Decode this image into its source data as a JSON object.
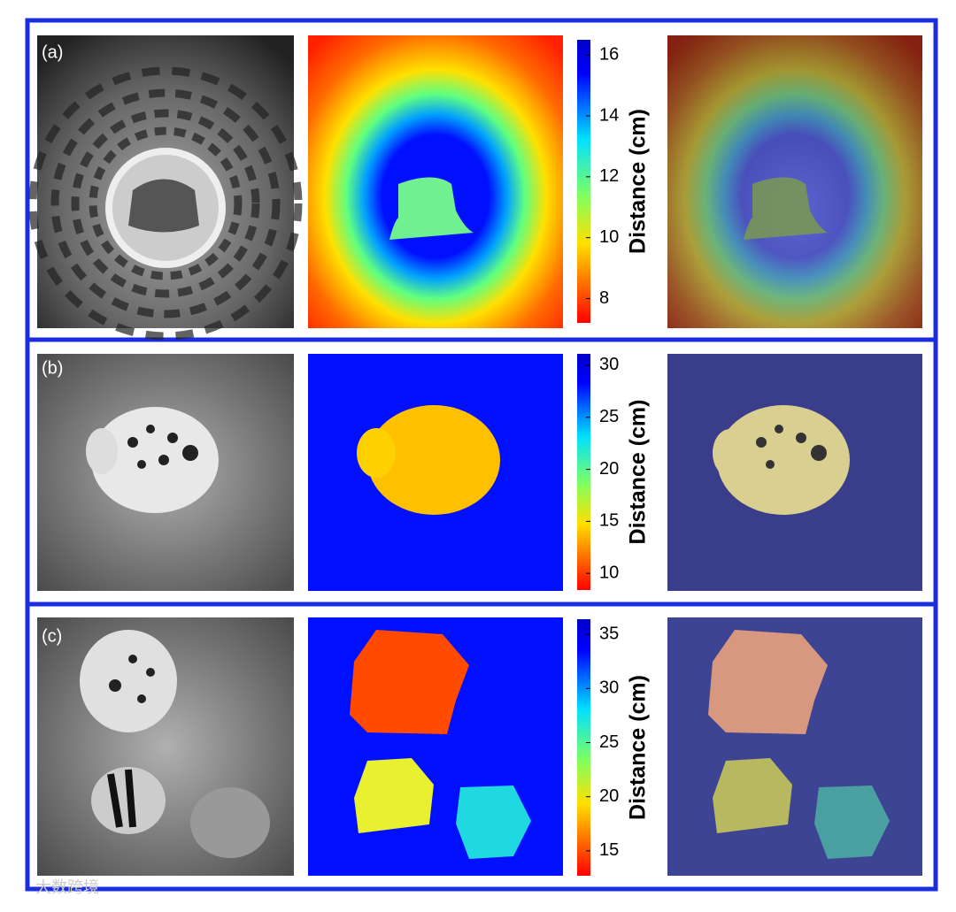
{
  "panels": [
    {
      "label": "(a)",
      "colorbar": {
        "label": "Distance (cm)",
        "lim": [
          7.2,
          16.5
        ],
        "ticks": [
          8,
          10,
          12,
          14,
          16
        ]
      }
    },
    {
      "label": "(b)",
      "colorbar": {
        "label": "Distance (cm)",
        "lim": [
          8.4,
          31.1
        ],
        "ticks": [
          10,
          15,
          20,
          25,
          30
        ]
      }
    },
    {
      "label": "(c)",
      "colorbar": {
        "label": "Distance (cm)",
        "lim": [
          12.7,
          36.4
        ],
        "ticks": [
          15,
          20,
          25,
          30,
          35
        ]
      }
    }
  ],
  "watermark": "大数跨境"
}
